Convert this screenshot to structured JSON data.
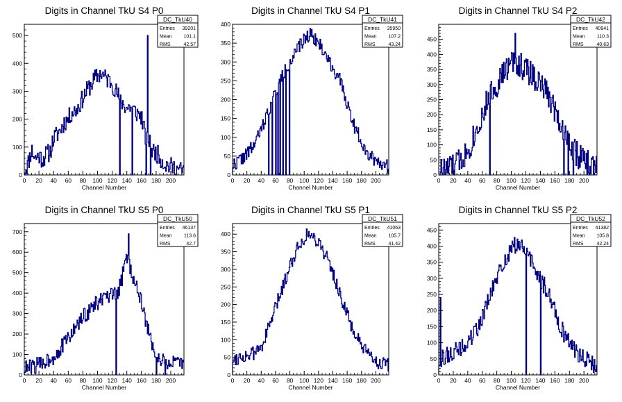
{
  "page": {
    "background": "#ffffff",
    "line_color": "#000080"
  },
  "chart_data": [
    {
      "type": "histogram",
      "title": "Digits in Channel TkU S4 P0",
      "xlabel": "Channel Number",
      "ylabel": "",
      "xlim": [
        0,
        218
      ],
      "ylim": [
        0,
        540
      ],
      "xticks": [
        0,
        20,
        40,
        60,
        80,
        100,
        120,
        140,
        160,
        180,
        200
      ],
      "yticks": [
        0,
        100,
        200,
        300,
        400,
        500
      ],
      "stats": {
        "name": "DC_TkU40",
        "Entries": "39201",
        "Mean": "101.1",
        "RMS": "42.57"
      },
      "envelope": [
        [
          0,
          15
        ],
        [
          5,
          40
        ],
        [
          10,
          90
        ],
        [
          15,
          60
        ],
        [
          20,
          70
        ],
        [
          25,
          55
        ],
        [
          30,
          75
        ],
        [
          35,
          80
        ],
        [
          40,
          130
        ],
        [
          45,
          145
        ],
        [
          50,
          165
        ],
        [
          55,
          190
        ],
        [
          60,
          200
        ],
        [
          65,
          225
        ],
        [
          70,
          230
        ],
        [
          75,
          250
        ],
        [
          80,
          275
        ],
        [
          85,
          300
        ],
        [
          90,
          320
        ],
        [
          95,
          340
        ],
        [
          100,
          355
        ],
        [
          105,
          365
        ],
        [
          110,
          350
        ],
        [
          115,
          340
        ],
        [
          120,
          330
        ],
        [
          125,
          300
        ],
        [
          130,
          275
        ],
        [
          135,
          255
        ],
        [
          140,
          240
        ],
        [
          145,
          245
        ],
        [
          150,
          230
        ],
        [
          155,
          220
        ],
        [
          160,
          210
        ],
        [
          165,
          140
        ],
        [
          170,
          120
        ],
        [
          175,
          85
        ],
        [
          180,
          80
        ],
        [
          185,
          65
        ],
        [
          190,
          45
        ],
        [
          195,
          35
        ],
        [
          200,
          30
        ],
        [
          205,
          25
        ],
        [
          210,
          20
        ],
        [
          215,
          15
        ]
      ],
      "spikes": [
        [
          130,
          0
        ],
        [
          147,
          0
        ],
        [
          166,
          0
        ],
        [
          168,
          500
        ],
        [
          172,
          0
        ]
      ],
      "noise": 34,
      "seed": 11
    },
    {
      "type": "histogram",
      "title": "Digits in Channel TkU S4 P1",
      "xlabel": "Channel Number",
      "ylabel": "",
      "xlim": [
        0,
        218
      ],
      "ylim": [
        0,
        400
      ],
      "xticks": [
        0,
        20,
        40,
        60,
        80,
        100,
        120,
        140,
        160,
        180,
        200
      ],
      "yticks": [
        0,
        50,
        100,
        150,
        200,
        250,
        300,
        350,
        400
      ],
      "stats": {
        "name": "DC_TkU41",
        "Entries": "35950",
        "Mean": "107.2",
        "RMS": "43.24"
      },
      "envelope": [
        [
          0,
          25
        ],
        [
          10,
          40
        ],
        [
          20,
          55
        ],
        [
          30,
          80
        ],
        [
          40,
          120
        ],
        [
          50,
          170
        ],
        [
          60,
          220
        ],
        [
          70,
          265
        ],
        [
          80,
          300
        ],
        [
          90,
          330
        ],
        [
          100,
          360
        ],
        [
          105,
          370
        ],
        [
          110,
          375
        ],
        [
          120,
          350
        ],
        [
          130,
          320
        ],
        [
          140,
          285
        ],
        [
          150,
          250
        ],
        [
          160,
          190
        ],
        [
          170,
          130
        ],
        [
          180,
          90
        ],
        [
          190,
          55
        ],
        [
          200,
          40
        ],
        [
          210,
          30
        ],
        [
          218,
          20
        ]
      ],
      "spikes": [
        [
          50,
          0
        ],
        [
          55,
          0
        ],
        [
          60,
          0
        ],
        [
          63,
          0
        ],
        [
          66,
          0
        ],
        [
          70,
          0
        ],
        [
          74,
          0
        ],
        [
          79,
          0
        ]
      ],
      "noise": 18,
      "seed": 22
    },
    {
      "type": "histogram",
      "title": "Digits in Channel TkU S4 P2",
      "xlabel": "Channel Number",
      "ylabel": "",
      "xlim": [
        0,
        218
      ],
      "ylim": [
        0,
        500
      ],
      "xticks": [
        0,
        20,
        40,
        60,
        80,
        100,
        120,
        140,
        160,
        180,
        200
      ],
      "yticks": [
        0,
        50,
        100,
        150,
        200,
        250,
        300,
        350,
        400,
        450
      ],
      "stats": {
        "name": "DC_TkU42",
        "Entries": "40941",
        "Mean": "110.3",
        "RMS": "40.63"
      },
      "envelope": [
        [
          0,
          15
        ],
        [
          10,
          20
        ],
        [
          20,
          30
        ],
        [
          30,
          50
        ],
        [
          40,
          80
        ],
        [
          50,
          140
        ],
        [
          60,
          200
        ],
        [
          70,
          260
        ],
        [
          80,
          300
        ],
        [
          90,
          340
        ],
        [
          100,
          370
        ],
        [
          105,
          380
        ],
        [
          110,
          370
        ],
        [
          120,
          350
        ],
        [
          130,
          330
        ],
        [
          140,
          300
        ],
        [
          150,
          270
        ],
        [
          160,
          220
        ],
        [
          170,
          160
        ],
        [
          180,
          110
        ],
        [
          190,
          70
        ],
        [
          200,
          45
        ],
        [
          210,
          35
        ],
        [
          218,
          20
        ]
      ],
      "spikes": [
        [
          70,
          0
        ],
        [
          105,
          470
        ],
        [
          172,
          0
        ],
        [
          178,
          0
        ],
        [
          185,
          0
        ],
        [
          207,
          0
        ]
      ],
      "noise": 45,
      "seed": 33
    },
    {
      "type": "histogram",
      "title": "Digits in Channel TkU S5 P0",
      "xlabel": "Channel Number",
      "ylabel": "",
      "xlim": [
        0,
        218
      ],
      "ylim": [
        0,
        740
      ],
      "xticks": [
        0,
        20,
        40,
        60,
        80,
        100,
        120,
        140,
        160,
        180,
        200
      ],
      "yticks": [
        0,
        100,
        200,
        300,
        400,
        500,
        600,
        700
      ],
      "stats": {
        "name": "DC_TkU50",
        "Entries": "46137",
        "Mean": "113.6",
        "RMS": "42.7"
      },
      "envelope": [
        [
          0,
          30
        ],
        [
          10,
          40
        ],
        [
          20,
          50
        ],
        [
          30,
          70
        ],
        [
          40,
          90
        ],
        [
          50,
          130
        ],
        [
          60,
          180
        ],
        [
          70,
          230
        ],
        [
          80,
          280
        ],
        [
          90,
          320
        ],
        [
          100,
          355
        ],
        [
          110,
          375
        ],
        [
          120,
          385
        ],
        [
          125,
          390
        ],
        [
          130,
          420
        ],
        [
          135,
          500
        ],
        [
          140,
          580
        ],
        [
          145,
          520
        ],
        [
          150,
          470
        ],
        [
          155,
          420
        ],
        [
          160,
          350
        ],
        [
          165,
          280
        ],
        [
          170,
          200
        ],
        [
          175,
          150
        ],
        [
          180,
          100
        ],
        [
          190,
          60
        ],
        [
          200,
          60
        ],
        [
          210,
          50
        ],
        [
          218,
          60
        ]
      ],
      "spikes": [
        [
          125,
          0
        ],
        [
          142,
          690
        ],
        [
          180,
          0
        ],
        [
          192,
          0
        ]
      ],
      "noise": 40,
      "seed": 44
    },
    {
      "type": "histogram",
      "title": "Digits in Channel TkU S5 P1",
      "xlabel": "Channel Number",
      "ylabel": "",
      "xlim": [
        0,
        218
      ],
      "ylim": [
        0,
        430
      ],
      "xticks": [
        0,
        20,
        40,
        60,
        80,
        100,
        120,
        140,
        160,
        180,
        200
      ],
      "yticks": [
        0,
        50,
        100,
        150,
        200,
        250,
        300,
        350,
        400
      ],
      "stats": {
        "name": "DC_TkU51",
        "Entries": "41063",
        "Mean": "105.7",
        "RMS": "41.42"
      },
      "envelope": [
        [
          0,
          45
        ],
        [
          10,
          50
        ],
        [
          20,
          55
        ],
        [
          30,
          60
        ],
        [
          40,
          80
        ],
        [
          50,
          130
        ],
        [
          60,
          190
        ],
        [
          70,
          250
        ],
        [
          80,
          310
        ],
        [
          90,
          360
        ],
        [
          100,
          390
        ],
        [
          105,
          400
        ],
        [
          110,
          395
        ],
        [
          120,
          380
        ],
        [
          130,
          340
        ],
        [
          140,
          290
        ],
        [
          150,
          230
        ],
        [
          160,
          170
        ],
        [
          170,
          120
        ],
        [
          180,
          80
        ],
        [
          190,
          55
        ],
        [
          200,
          40
        ],
        [
          210,
          30
        ],
        [
          218,
          25
        ]
      ],
      "spikes": [],
      "noise": 20,
      "seed": 55
    },
    {
      "type": "histogram",
      "title": "Digits in Channel TkU S5 P2",
      "xlabel": "Channel Number",
      "ylabel": "",
      "xlim": [
        0,
        218
      ],
      "ylim": [
        0,
        470
      ],
      "xticks": [
        0,
        20,
        40,
        60,
        80,
        100,
        120,
        140,
        160,
        180,
        200
      ],
      "yticks": [
        0,
        50,
        100,
        150,
        200,
        250,
        300,
        350,
        400,
        450
      ],
      "stats": {
        "name": "DC_TkU52",
        "Entries": "41382",
        "Mean": "105.8",
        "RMS": "42.24"
      },
      "envelope": [
        [
          0,
          40
        ],
        [
          10,
          60
        ],
        [
          20,
          70
        ],
        [
          30,
          80
        ],
        [
          40,
          100
        ],
        [
          50,
          130
        ],
        [
          60,
          180
        ],
        [
          70,
          240
        ],
        [
          80,
          300
        ],
        [
          90,
          350
        ],
        [
          100,
          390
        ],
        [
          105,
          400
        ],
        [
          110,
          410
        ],
        [
          120,
          380
        ],
        [
          130,
          340
        ],
        [
          140,
          300
        ],
        [
          150,
          260
        ],
        [
          160,
          200
        ],
        [
          170,
          140
        ],
        [
          180,
          100
        ],
        [
          190,
          70
        ],
        [
          200,
          55
        ],
        [
          210,
          40
        ],
        [
          218,
          15
        ]
      ],
      "spikes": [
        [
          2,
          240
        ],
        [
          120,
          0
        ],
        [
          140,
          0
        ]
      ],
      "noise": 28,
      "seed": 66
    }
  ]
}
